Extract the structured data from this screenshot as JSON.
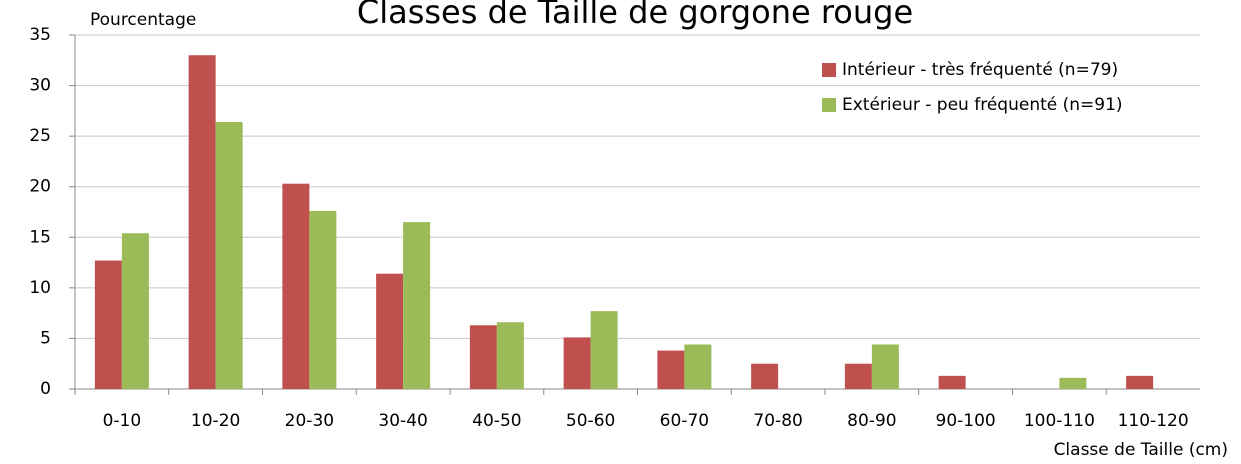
{
  "chart_data": {
    "type": "bar",
    "title": "Classes de Taille de gorgone rouge",
    "y_label": "Pourcentage",
    "x_label": "Classe de Taille (cm)",
    "categories": [
      "0-10",
      "10-20",
      "20-30",
      "30-40",
      "40-50",
      "50-60",
      "60-70",
      "70-80",
      "80-90",
      "90-100",
      "100-110",
      "110-120"
    ],
    "series": [
      {
        "name": "Intérieur - très fréquenté (n=79)",
        "color": "#c0504d",
        "values": [
          12.7,
          33,
          20.3,
          11.4,
          6.3,
          5.1,
          3.8,
          2.5,
          2.5,
          1.3,
          0,
          1.3
        ]
      },
      {
        "name": "Extérieur - peu fréquenté (n=91)",
        "color": "#9bbb59",
        "values": [
          15.4,
          26.4,
          17.6,
          16.5,
          6.6,
          7.7,
          4.4,
          0,
          4.4,
          0,
          1.1,
          0
        ]
      }
    ],
    "ylim": [
      0,
      35
    ],
    "yticks": [
      0,
      5,
      10,
      15,
      20,
      25,
      30,
      35
    ],
    "grid": true,
    "legend": "top-right"
  }
}
